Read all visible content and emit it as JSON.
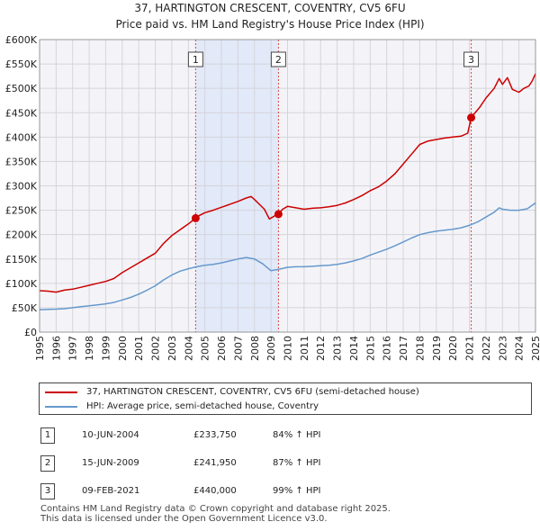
{
  "chart_data": {
    "type": "line",
    "title": "37, HARTINGTON CRESCENT, COVENTRY, CV5 6FU",
    "subtitle": "Price paid vs. HM Land Registry's House Price Index (HPI)",
    "xlim": [
      1995,
      2025
    ],
    "ylim": [
      0,
      600000
    ],
    "ytick_values": [
      0,
      50000,
      100000,
      150000,
      200000,
      250000,
      300000,
      350000,
      400000,
      450000,
      500000,
      550000,
      600000
    ],
    "ytick_labels": [
      "£0",
      "£50K",
      "£100K",
      "£150K",
      "£200K",
      "£250K",
      "£300K",
      "£350K",
      "£400K",
      "£450K",
      "£500K",
      "£550K",
      "£600K"
    ],
    "xtick_labels": [
      "1995",
      "1996",
      "1997",
      "1998",
      "1999",
      "2000",
      "2001",
      "2002",
      "2003",
      "2004",
      "2005",
      "2006",
      "2007",
      "2008",
      "2009",
      "2010",
      "2011",
      "2012",
      "2013",
      "2014",
      "2015",
      "2016",
      "2017",
      "2018",
      "2019",
      "2020",
      "2021",
      "2022",
      "2023",
      "2024",
      "2025"
    ],
    "grid": true,
    "series": [
      {
        "name": "37, HARTINGTON CRESCENT, COVENTRY, CV5 6FU (semi-detached house)",
        "color": "#cc0000",
        "x": [
          1995.0,
          1995.5,
          1996.0,
          1996.5,
          1997.0,
          1997.5,
          1998.0,
          1998.5,
          1999.0,
          1999.5,
          2000.0,
          2000.5,
          2001.0,
          2001.5,
          2002.0,
          2002.5,
          2003.0,
          2003.5,
          2004.0,
          2004.44,
          2004.6,
          2005.0,
          2005.5,
          2006.0,
          2006.5,
          2007.0,
          2007.5,
          2007.8,
          2008.0,
          2008.3,
          2008.6,
          2008.9,
          2009.1,
          2009.3,
          2009.45,
          2009.7,
          2010.0,
          2010.5,
          2011.0,
          2011.5,
          2012.0,
          2012.5,
          2013.0,
          2013.5,
          2014.0,
          2014.5,
          2015.0,
          2015.5,
          2016.0,
          2016.5,
          2017.0,
          2017.5,
          2018.0,
          2018.5,
          2019.0,
          2019.5,
          2020.0,
          2020.5,
          2020.9,
          2021.11,
          2021.3,
          2021.6,
          2022.0,
          2022.5,
          2022.8,
          2023.0,
          2023.3,
          2023.6,
          2024.0,
          2024.3,
          2024.6,
          2024.8,
          2025.0
        ],
        "values": [
          85000,
          84000,
          82000,
          86000,
          88000,
          92000,
          96000,
          100000,
          104000,
          110000,
          122000,
          132000,
          142000,
          152000,
          162000,
          182000,
          198000,
          210000,
          222000,
          233750,
          238000,
          245000,
          250000,
          256000,
          262000,
          268000,
          275000,
          278000,
          272000,
          262000,
          252000,
          232000,
          236000,
          240000,
          241950,
          252000,
          258000,
          255000,
          252000,
          254000,
          255000,
          257000,
          260000,
          265000,
          272000,
          280000,
          290000,
          298000,
          310000,
          325000,
          345000,
          365000,
          385000,
          392000,
          395000,
          398000,
          400000,
          402000,
          408000,
          440000,
          448000,
          460000,
          480000,
          500000,
          520000,
          508000,
          522000,
          498000,
          492000,
          500000,
          505000,
          515000,
          530000
        ]
      },
      {
        "name": "HPI: Average price, semi-detached house, Coventry",
        "color": "#6699cc",
        "x": [
          1995.0,
          1995.5,
          1996.0,
          1996.5,
          1997.0,
          1997.5,
          1998.0,
          1998.5,
          1999.0,
          1999.5,
          2000.0,
          2000.5,
          2001.0,
          2001.5,
          2002.0,
          2002.5,
          2003.0,
          2003.5,
          2004.0,
          2004.5,
          2005.0,
          2005.5,
          2006.0,
          2006.5,
          2007.0,
          2007.5,
          2008.0,
          2008.5,
          2009.0,
          2009.5,
          2010.0,
          2010.5,
          2011.0,
          2011.5,
          2012.0,
          2012.5,
          2013.0,
          2013.5,
          2014.0,
          2014.5,
          2015.0,
          2015.5,
          2016.0,
          2016.5,
          2017.0,
          2017.5,
          2018.0,
          2018.5,
          2019.0,
          2019.5,
          2020.0,
          2020.5,
          2021.0,
          2021.5,
          2022.0,
          2022.5,
          2022.8,
          2023.0,
          2023.5,
          2024.0,
          2024.5,
          2025.0
        ],
        "values": [
          46000,
          46500,
          47000,
          48000,
          50000,
          52000,
          54000,
          56000,
          58000,
          61000,
          66000,
          71000,
          78000,
          86000,
          95000,
          107000,
          117000,
          125000,
          130000,
          134000,
          137000,
          139000,
          142000,
          146000,
          150000,
          153000,
          150000,
          140000,
          126000,
          129000,
          133000,
          134000,
          134000,
          135000,
          136000,
          137000,
          139000,
          142000,
          146000,
          151000,
          158000,
          164000,
          170000,
          177000,
          185000,
          193000,
          200000,
          204000,
          207000,
          209000,
          211000,
          214000,
          219000,
          226000,
          236000,
          246000,
          255000,
          252000,
          250000,
          250000,
          253000,
          265000
        ]
      }
    ],
    "sales": [
      {
        "label": "1",
        "year": 2004.44,
        "price": 233750
      },
      {
        "label": "2",
        "year": 2009.45,
        "price": 241950
      },
      {
        "label": "3",
        "year": 2021.11,
        "price": 440000
      }
    ],
    "shaded_ranges": [
      [
        2004.44,
        2009.45
      ]
    ]
  },
  "legend": [
    {
      "label": "37, HARTINGTON CRESCENT, COVENTRY, CV5 6FU (semi-detached house)",
      "color": "#cc0000"
    },
    {
      "label": "HPI: Average price, semi-detached house, Coventry",
      "color": "#6699cc"
    }
  ],
  "transactions": [
    {
      "num": "1",
      "date": "10-JUN-2004",
      "price": "£233,750",
      "hpi": "84% ↑ HPI"
    },
    {
      "num": "2",
      "date": "15-JUN-2009",
      "price": "£241,950",
      "hpi": "87% ↑ HPI"
    },
    {
      "num": "3",
      "date": "09-FEB-2021",
      "price": "£440,000",
      "hpi": "99% ↑ HPI"
    }
  ],
  "footer": {
    "line1": "Contains HM Land Registry data © Crown copyright and database right 2025.",
    "line2": "This data is licensed under the Open Government Licence v3.0."
  }
}
